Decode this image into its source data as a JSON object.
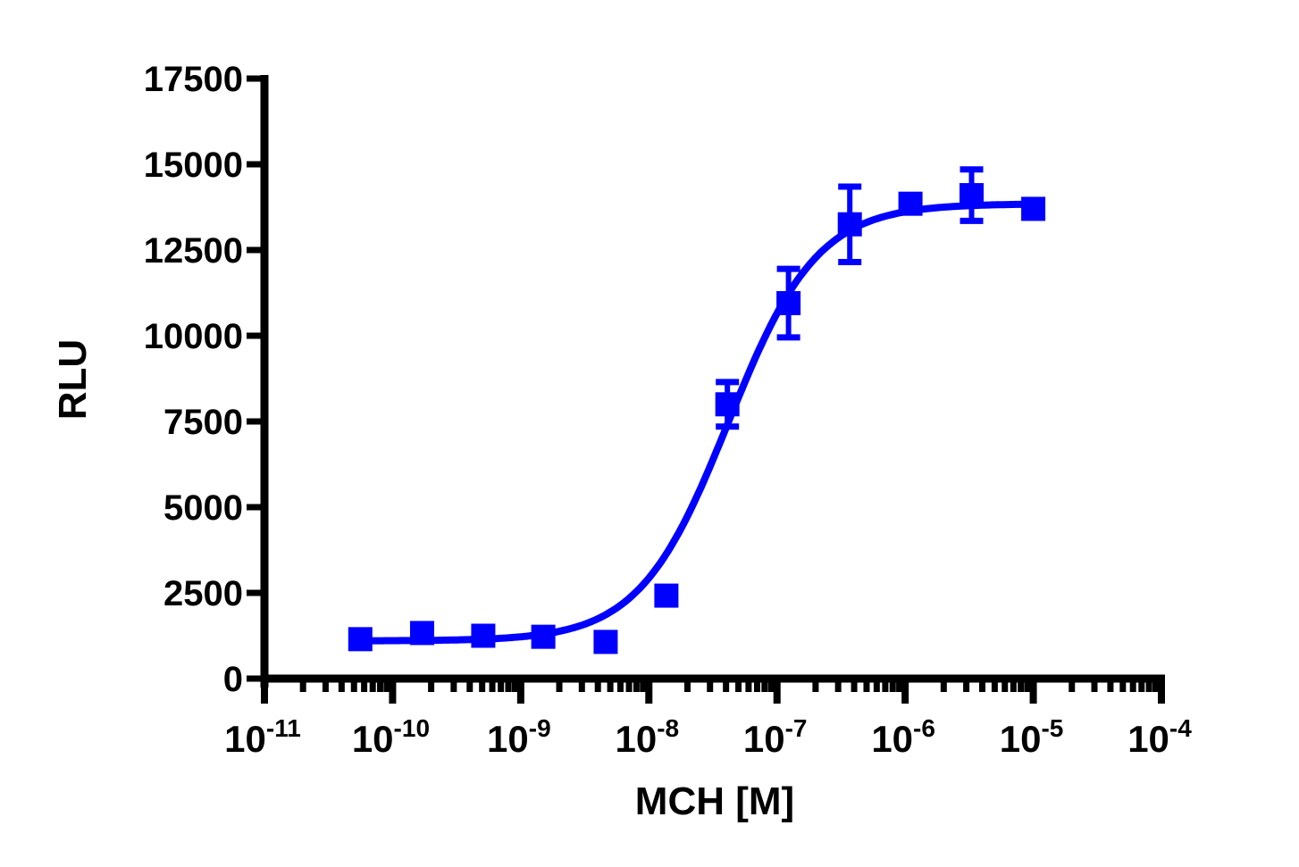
{
  "chart_data": {
    "type": "scatter",
    "title": "",
    "xlabel": "MCH [M]",
    "ylabel": "RLU",
    "xscale": "log",
    "xlim": [
      1e-11,
      0.0001
    ],
    "ylim": [
      0,
      17500
    ],
    "grid": false,
    "legend": null,
    "color": "#0000FF",
    "y_ticks": [
      0,
      2500,
      5000,
      7500,
      10000,
      12500,
      15000,
      17500
    ],
    "x_ticks": [
      {
        "base": "10",
        "exp": "-11",
        "value": 1e-11
      },
      {
        "base": "10",
        "exp": "-10",
        "value": 1e-10
      },
      {
        "base": "10",
        "exp": "-9",
        "value": 1e-09
      },
      {
        "base": "10",
        "exp": "-8",
        "value": 1e-08
      },
      {
        "base": "10",
        "exp": "-7",
        "value": 1e-07
      },
      {
        "base": "10",
        "exp": "-6",
        "value": 1e-06
      },
      {
        "base": "10",
        "exp": "-5",
        "value": 1e-05
      },
      {
        "base": "10",
        "exp": "-4",
        "value": 0.0001
      }
    ],
    "series": [
      {
        "name": "MCH",
        "marker": "square",
        "x": [
          5.6e-11,
          1.7e-10,
          5.1e-10,
          1.5e-09,
          4.6e-09,
          1.37e-08,
          4.1e-08,
          1.23e-07,
          3.7e-07,
          1.1e-06,
          3.3e-06,
          1e-05
        ],
        "y": [
          1150,
          1330,
          1250,
          1220,
          1070,
          2420,
          8000,
          10950,
          13250,
          13850,
          14100,
          13700
        ],
        "error": [
          0,
          0,
          0,
          0,
          0,
          0,
          650,
          1000,
          1100,
          0,
          750,
          0
        ]
      }
    ],
    "fit": {
      "model": "four-parameter logistic",
      "bottom": 1100,
      "top": 13850,
      "log_ec50": -7.38,
      "hill_slope": 1.25,
      "x_range": [
        5.6e-11,
        1e-05
      ]
    }
  }
}
